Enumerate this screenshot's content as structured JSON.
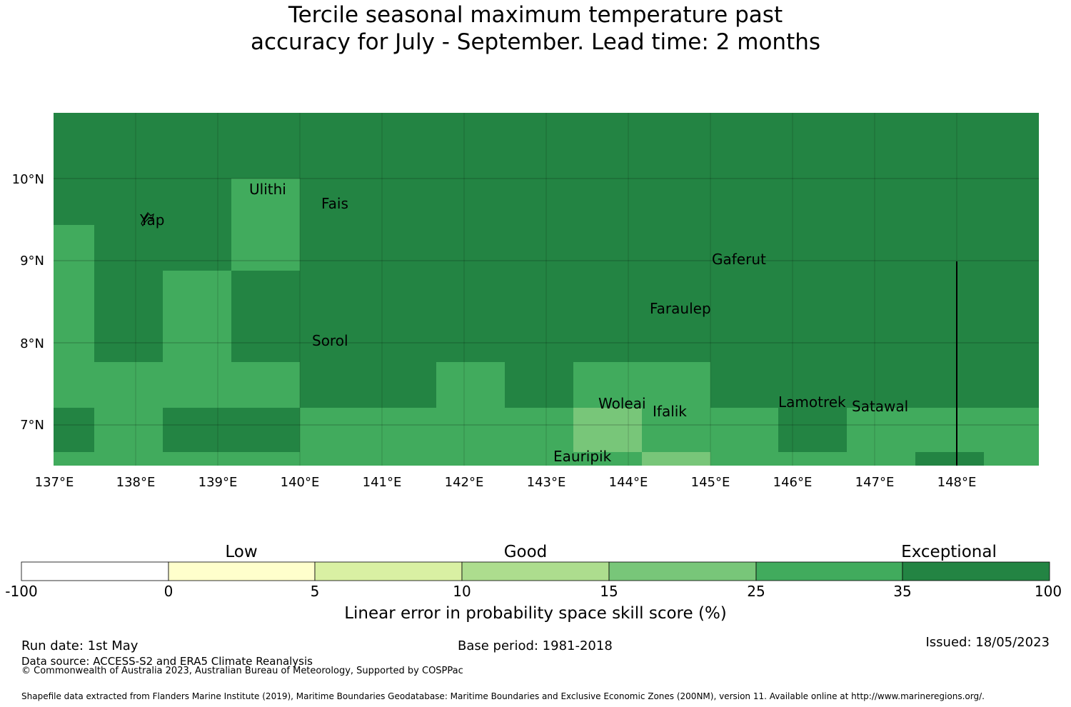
{
  "title_lines": [
    "Tercile seasonal maximum temperature past",
    "accuracy for July - September. Lead time: 2 months"
  ],
  "colors": {
    "c35_100": "#238443",
    "c25_35": "#41ab5d",
    "c15_25": "#78c679",
    "c10_15": "#addd8e",
    "c5_10": "#d9f0a3",
    "c0_5": "#ffffcc",
    "cneg": "#ffffff"
  },
  "map": {
    "lon_ticks": [
      "137°E",
      "138°E",
      "139°E",
      "140°E",
      "141°E",
      "142°E",
      "143°E",
      "144°E",
      "145°E",
      "146°E",
      "147°E",
      "148°E"
    ],
    "lat_ticks": [
      "10°N",
      "9°N",
      "8°N",
      "7°N"
    ],
    "places": [
      {
        "name": "Yap",
        "lon": 138.22,
        "lat": 9.48
      },
      {
        "name": "Ulithi",
        "lon": 139.62,
        "lat": 9.87
      },
      {
        "name": "Fais",
        "lon": 140.44,
        "lat": 9.68
      },
      {
        "name": "Gaferut",
        "lon": 145.36,
        "lat": 8.99
      },
      {
        "name": "Faraulep",
        "lon": 144.66,
        "lat": 8.39
      },
      {
        "name": "Sorol",
        "lon": 140.37,
        "lat": 8.02
      },
      {
        "name": "Woleai",
        "lon": 143.85,
        "lat": 7.25
      },
      {
        "name": "Ifalik",
        "lon": 144.5,
        "lat": 7.16
      },
      {
        "name": "Lamotrek",
        "lon": 146.26,
        "lat": 7.27
      },
      {
        "name": "Satawal",
        "lon": 147.09,
        "lat": 7.22
      },
      {
        "name": "Eauripik",
        "lon": 143.45,
        "lat": 6.6
      }
    ]
  },
  "colorbar": {
    "categories": [
      "Low",
      "Good",
      "Exceptional"
    ],
    "ticks": [
      "-100",
      "0",
      "5",
      "10",
      "15",
      "25",
      "35",
      "100"
    ],
    "label": "Linear error in probability space skill score (%)"
  },
  "footer": {
    "run_date": "Run date: 1st May",
    "base_period": "Base period: 1981-2018",
    "issued": "Issued: 18/05/2023",
    "data_source": "Data source: ACCESS-S2 and ERA5 Climate Reanalysis",
    "copyright": "© Commonwealth of Australia 2023, Australian Bureau of Meteorology, Supported by COSPPac",
    "shapefile": "Shapefile data extracted from Flanders Marine Institute (2019), Maritime Boundaries Geodatabase: Maritime Boundaries and Exclusive Economic Zones (200NM), version 11. Available online at http://www.marineregions.org/."
  }
}
